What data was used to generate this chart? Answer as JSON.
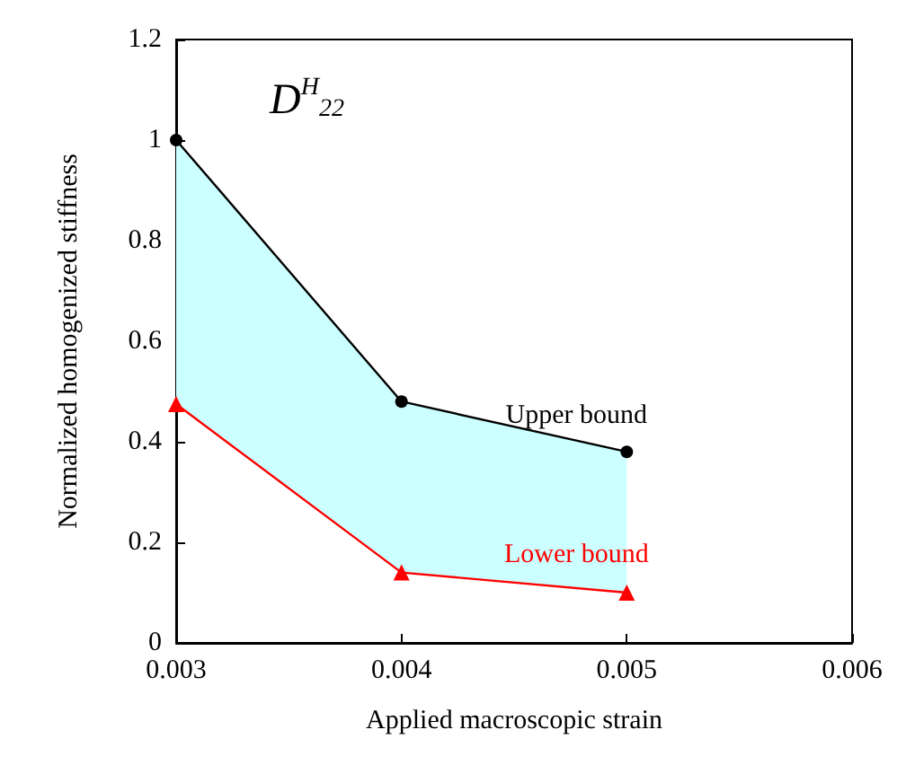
{
  "chart_data": {
    "type": "line",
    "xlabel": "Applied macroscopic strain",
    "ylabel": "Normalized homogenized stiffness",
    "annotations": [
      "D$^{H}$$_{22}$"
    ],
    "x": [
      0.003,
      0.004,
      0.005
    ],
    "series": [
      {
        "name": "Upper bound",
        "color": "#000000",
        "marker": "circle",
        "values": [
          1,
          0.48,
          0.38
        ],
        "lower": [
          0.475,
          0.14,
          0.1
        ],
        "upper": [
          1,
          0.48,
          0.38
        ]
      },
      {
        "name": "Lower bound",
        "color": "#ff0000",
        "marker": "triangle",
        "values": [
          0.475,
          0.14,
          0.1
        ]
      }
    ],
    "xlim": [
      0.003,
      0.006
    ],
    "xticks": [
      0.003,
      0.004,
      0.005,
      0.006
    ],
    "ylim": [
      0,
      1.2
    ],
    "yticks": [
      0,
      0.2,
      0.4,
      0.6,
      0.8,
      1,
      1.2
    ],
    "grid": false,
    "legend": false
  }
}
